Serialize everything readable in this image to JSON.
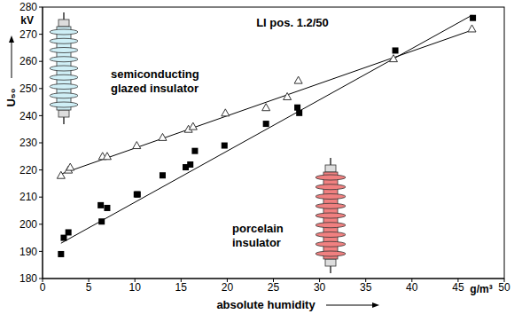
{
  "chart_data": {
    "type": "scatter",
    "annotations": [
      "LI pos. 1.2/50"
    ],
    "xlabel": "absolute humidity",
    "xunit": "g/m³",
    "ylabel": "U₅₀",
    "yunit": "kV",
    "xlim": [
      0,
      50
    ],
    "xticks": [
      0,
      5,
      10,
      15,
      20,
      25,
      30,
      35,
      40,
      45,
      50
    ],
    "ylim": [
      180,
      280
    ],
    "yticks": [
      180,
      190,
      200,
      210,
      220,
      230,
      240,
      250,
      260,
      270,
      280
    ],
    "grid": false,
    "series": [
      {
        "name": "semiconducting glazed insulator",
        "color": "#333333",
        "marker": "triangle",
        "x": [
          2,
          2.8,
          3,
          6.5,
          7,
          10.2,
          13,
          15.8,
          16.3,
          19.8,
          24.2,
          26.5,
          27.7,
          38,
          46.5
        ],
        "values": [
          218,
          220,
          221,
          225,
          225,
          229,
          232,
          235,
          236,
          241,
          243,
          247,
          253,
          261,
          272
        ],
        "fit": {
          "x": [
            2,
            46.5
          ],
          "values": [
            218.5,
            271.5
          ]
        }
      },
      {
        "name": "porcelain insulator",
        "color": "#000000",
        "marker": "square",
        "x": [
          2,
          2.3,
          2.8,
          6.3,
          6.4,
          7,
          10.2,
          10.3,
          13,
          15.5,
          16,
          16.5,
          19.7,
          24.2,
          27.6,
          27.8,
          38.2,
          46.6
        ],
        "values": [
          189,
          195,
          197,
          207,
          201,
          206,
          211,
          211,
          218,
          221,
          222,
          227,
          229,
          237,
          243,
          241,
          264,
          276
        ],
        "fit": {
          "x": [
            2,
            46.5
          ],
          "values": [
            193,
            277
          ]
        }
      }
    ]
  }
}
